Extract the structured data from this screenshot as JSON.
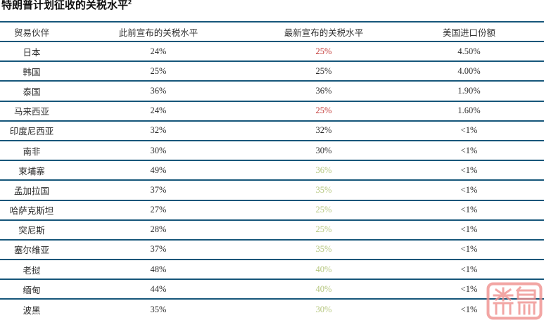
{
  "page": {
    "background": "#FFFFFF"
  },
  "title": {
    "text": "特朗普计划征收的关税水平",
    "footnote_marker": "2"
  },
  "table": {
    "border_color": "#16567A",
    "columns": [
      "贸易伙伴",
      "此前宣布的关税水平",
      "最新宣布的关税水平",
      "美国进口份额"
    ],
    "value_colors": {
      "red": "#C0312E",
      "green": "#B4C57C",
      "black": "#2B2B2B"
    },
    "rows": [
      {
        "partner": "日本",
        "previous": "24%",
        "latest": "25%",
        "latest_color": "red",
        "import_share": "4.50%"
      },
      {
        "partner": "韩国",
        "previous": "25%",
        "latest": "25%",
        "latest_color": "black",
        "import_share": "4.00%"
      },
      {
        "partner": "泰国",
        "previous": "36%",
        "latest": "36%",
        "latest_color": "black",
        "import_share": "1.90%"
      },
      {
        "partner": "马来西亚",
        "previous": "24%",
        "latest": "25%",
        "latest_color": "red",
        "import_share": "1.60%"
      },
      {
        "partner": "印度尼西亚",
        "previous": "32%",
        "latest": "32%",
        "latest_color": "black",
        "import_share": "<1%"
      },
      {
        "partner": "南非",
        "previous": "30%",
        "latest": "30%",
        "latest_color": "black",
        "import_share": "<1%"
      },
      {
        "partner": "柬埔寨",
        "previous": "49%",
        "latest": "36%",
        "latest_color": "green",
        "import_share": "<1%"
      },
      {
        "partner": "孟加拉国",
        "previous": "37%",
        "latest": "35%",
        "latest_color": "green",
        "import_share": "<1%"
      },
      {
        "partner": "哈萨克斯坦",
        "previous": "27%",
        "latest": "25%",
        "latest_color": "green",
        "import_share": "<1%"
      },
      {
        "partner": "突尼斯",
        "previous": "28%",
        "latest": "25%",
        "latest_color": "green",
        "import_share": "<1%"
      },
      {
        "partner": "塞尔维亚",
        "previous": "37%",
        "latest": "35%",
        "latest_color": "green",
        "import_share": "<1%"
      },
      {
        "partner": "老挝",
        "previous": "48%",
        "latest": "40%",
        "latest_color": "green",
        "import_share": "<1%"
      },
      {
        "partner": "缅甸",
        "previous": "44%",
        "latest": "40%",
        "latest_color": "green",
        "import_share": "<1%"
      },
      {
        "partner": "波黑",
        "previous": "35%",
        "latest": "30%",
        "latest_color": "green",
        "import_share": "<1%"
      }
    ]
  },
  "watermark": {
    "icon": "seal-stamp-logo",
    "color": "#F0908E"
  }
}
